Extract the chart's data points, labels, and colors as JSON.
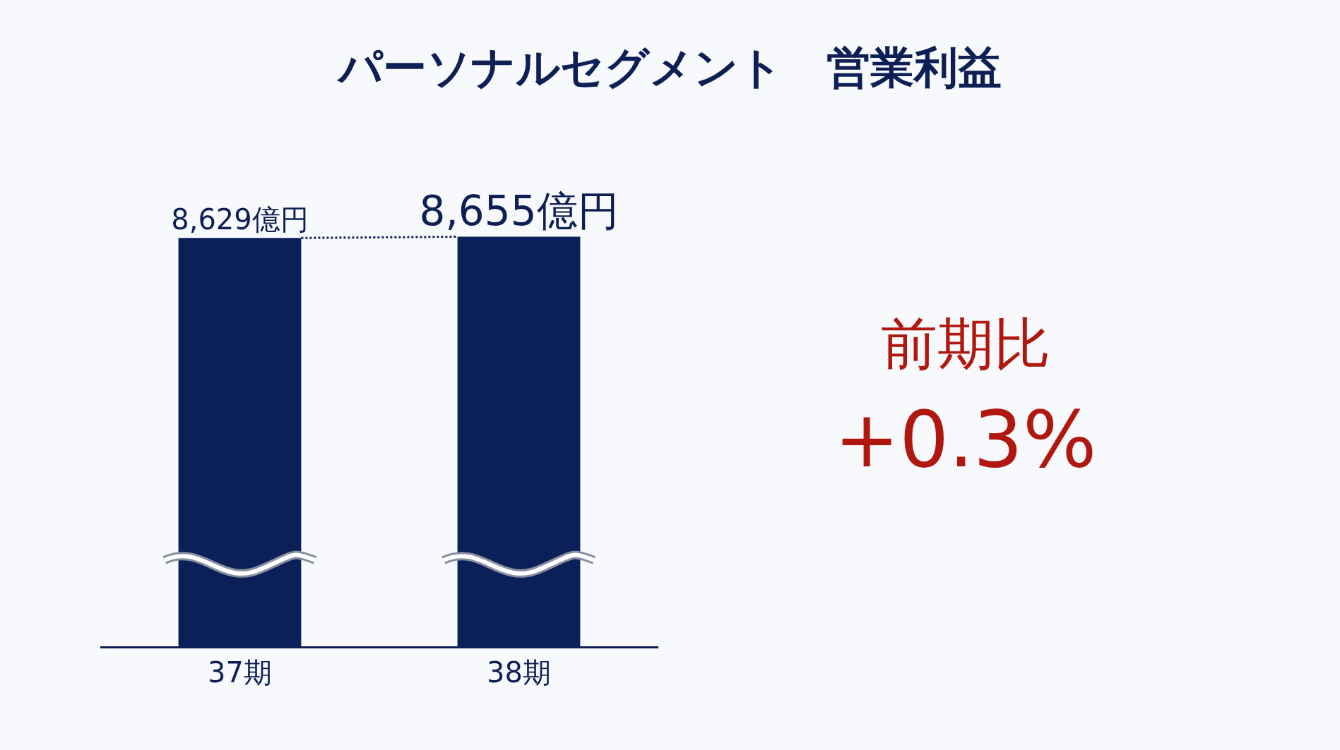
{
  "chart_data": {
    "type": "bar",
    "title": "パーソナルセグメント　営業利益",
    "categories": [
      "37期",
      "38期"
    ],
    "values": [
      8629,
      8655
    ],
    "value_labels": [
      "8,629億円",
      "8,655億円"
    ],
    "color": "#0b1f58",
    "tick_labels": "x",
    "annotations": [
      "前期比",
      "+0.3%"
    ]
  }
}
